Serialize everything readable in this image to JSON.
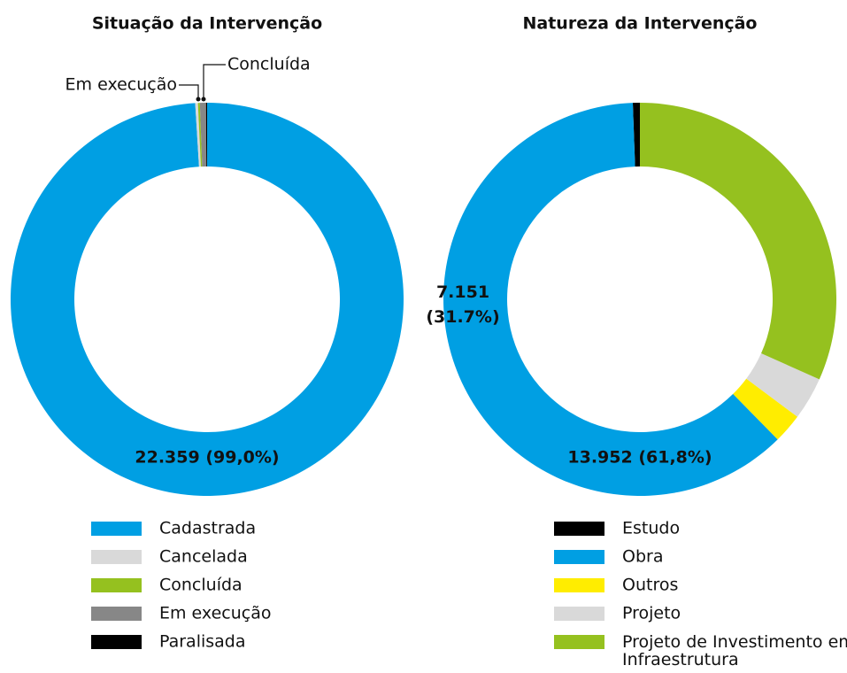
{
  "chart_data": [
    {
      "type": "donut",
      "title": "Situação da Intervenção",
      "categories": [
        "Cadastrada",
        "Cancelada",
        "Concluída",
        "Em execução",
        "Paralisada"
      ],
      "values": [
        22359,
        50,
        35,
        113,
        20
      ],
      "colors": [
        "#009fe3",
        "#d9d9d9",
        "#95c11f",
        "#878787",
        "#000000"
      ],
      "value_labels": [
        "22.359 (99,0%)",
        null,
        null,
        null,
        null
      ],
      "annotations": [
        "Em execução",
        "Concluída"
      ]
    },
    {
      "type": "donut",
      "title": "Natureza da Intervenção",
      "categories": [
        "Estudo",
        "Obra",
        "Outros",
        "Projeto",
        "Projeto de Investimento em Infraestrutura"
      ],
      "values": [
        130,
        13952,
        550,
        795,
        7151
      ],
      "colors": [
        "#000000",
        "#009fe3",
        "#ffed00",
        "#d9d9d9",
        "#95c11f"
      ],
      "value_labels": [
        null,
        "13.952 (61,8%)",
        null,
        null,
        "7.151 (31.7%)"
      ]
    }
  ]
}
